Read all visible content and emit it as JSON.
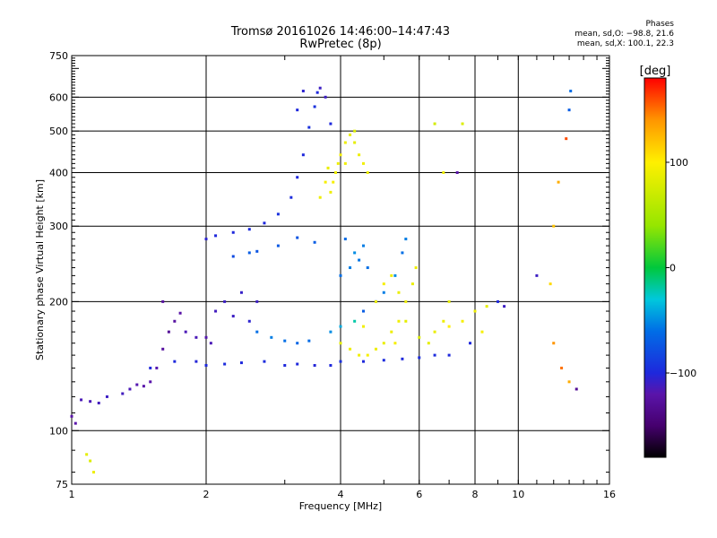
{
  "header": {
    "title": "Tromsø 20161026 14:46:00–14:47:43",
    "subtitle": "RwPretec (8p)",
    "stats_title": "Phases",
    "stats_o": "mean, sd,O: −98.8, 21.6",
    "stats_x": "mean, sd,X: 100.1, 22.3"
  },
  "chart_data": {
    "type": "scatter",
    "xlabel": "Frequency [MHz]",
    "ylabel": "Stationary phase Virtual Height [km]",
    "x_scale": "log",
    "y_scale": "log",
    "xlim": [
      1,
      16
    ],
    "ylim": [
      75,
      750
    ],
    "grid": true,
    "x_ticks": [
      1,
      2,
      4,
      6,
      8,
      10,
      16
    ],
    "x_tick_labels": [
      "1",
      "2",
      "4",
      "6",
      "8",
      "10",
      "16"
    ],
    "y_ticks": [
      75,
      100,
      200,
      300,
      400,
      500,
      600,
      750
    ],
    "y_tick_labels": [
      "75",
      "100",
      "200",
      "300",
      "400",
      "500",
      "600",
      "750"
    ],
    "colorbar": {
      "label": "[deg]",
      "range": [
        -180,
        180
      ],
      "ticks": [
        100,
        0,
        -100
      ],
      "tick_labels": [
        "100",
        "0",
        "−100"
      ]
    },
    "series": [
      {
        "points": [
          [
            1.0,
            108,
            -120
          ],
          [
            1.02,
            104,
            -120
          ],
          [
            1.05,
            118,
            -115
          ],
          [
            1.1,
            117,
            -115
          ],
          [
            1.15,
            116,
            -112
          ],
          [
            1.2,
            120,
            -110
          ],
          [
            1.3,
            122,
            -112
          ],
          [
            1.35,
            125,
            -115
          ],
          [
            1.4,
            128,
            -118
          ],
          [
            1.45,
            127,
            -120
          ],
          [
            1.5,
            130,
            -120
          ],
          [
            1.55,
            140,
            -118
          ],
          [
            1.6,
            155,
            -125
          ],
          [
            1.65,
            170,
            -130
          ],
          [
            1.7,
            180,
            -125
          ],
          [
            1.75,
            188,
            -122
          ],
          [
            1.6,
            200,
            -125
          ],
          [
            1.8,
            170,
            -115
          ],
          [
            1.9,
            165,
            -115
          ],
          [
            2.0,
            165,
            -118
          ],
          [
            2.05,
            160,
            -115
          ],
          [
            2.1,
            190,
            -112
          ],
          [
            2.2,
            200,
            -110
          ],
          [
            2.3,
            185,
            -110
          ],
          [
            2.4,
            210,
            -108
          ],
          [
            2.5,
            180,
            -105
          ],
          [
            2.6,
            200,
            -110
          ]
        ]
      },
      {
        "points": [
          [
            1.5,
            140,
            -100
          ],
          [
            1.7,
            145,
            -100
          ],
          [
            1.9,
            145,
            -102
          ],
          [
            2.0,
            142,
            -100
          ],
          [
            2.2,
            143,
            -98
          ],
          [
            2.4,
            144,
            -100
          ],
          [
            2.7,
            145,
            -98
          ],
          [
            3.0,
            142,
            -100
          ],
          [
            3.2,
            143,
            -100
          ],
          [
            3.5,
            142,
            -102
          ],
          [
            3.8,
            142,
            -100
          ],
          [
            4.0,
            145,
            -95
          ],
          [
            4.5,
            145,
            -100
          ],
          [
            5.0,
            146,
            -98
          ],
          [
            5.5,
            147,
            -100
          ],
          [
            6.0,
            148,
            -97
          ],
          [
            6.5,
            150,
            -98
          ],
          [
            7.0,
            150,
            -100
          ]
        ]
      },
      {
        "points": [
          [
            2.0,
            280,
            -105
          ],
          [
            2.1,
            285,
            -100
          ],
          [
            2.3,
            290,
            -100
          ],
          [
            2.5,
            295,
            -98
          ],
          [
            2.7,
            305,
            -100
          ],
          [
            2.9,
            320,
            -95
          ],
          [
            3.1,
            350,
            -98
          ],
          [
            3.2,
            390,
            -100
          ],
          [
            3.3,
            440,
            -100
          ],
          [
            3.4,
            510,
            -95
          ],
          [
            3.5,
            570,
            -95
          ],
          [
            3.55,
            615,
            -100
          ],
          [
            3.6,
            630,
            -110
          ],
          [
            3.7,
            600,
            -110
          ],
          [
            3.8,
            520,
            -100
          ],
          [
            3.3,
            620,
            -105
          ],
          [
            3.2,
            560,
            -100
          ]
        ]
      },
      {
        "points": [
          [
            2.3,
            255,
            -80
          ],
          [
            2.6,
            262,
            -75
          ],
          [
            2.9,
            270,
            -72
          ],
          [
            3.2,
            282,
            -75
          ],
          [
            3.5,
            275,
            -70
          ],
          [
            2.5,
            260,
            -70
          ]
        ]
      },
      {
        "points": [
          [
            2.6,
            170,
            -60
          ],
          [
            2.8,
            165,
            -55
          ],
          [
            3.0,
            162,
            -60
          ],
          [
            3.2,
            160,
            -65
          ],
          [
            3.4,
            162,
            -62
          ],
          [
            3.8,
            170,
            -50
          ],
          [
            4.0,
            175,
            -40
          ],
          [
            4.3,
            180,
            -20
          ],
          [
            4.5,
            190,
            -70
          ],
          [
            4.8,
            200,
            -60
          ],
          [
            5.0,
            210,
            -55
          ],
          [
            5.3,
            230,
            -50
          ],
          [
            5.5,
            260,
            -60
          ],
          [
            5.6,
            280,
            -55
          ]
        ]
      },
      {
        "points": [
          [
            3.8,
            360,
            90
          ],
          [
            3.85,
            380,
            95
          ],
          [
            3.9,
            400,
            92
          ],
          [
            3.95,
            420,
            90
          ],
          [
            4.0,
            440,
            95
          ],
          [
            4.1,
            470,
            90
          ],
          [
            4.2,
            490,
            88
          ],
          [
            4.3,
            470,
            85
          ],
          [
            4.4,
            440,
            90
          ],
          [
            4.5,
            420,
            92
          ],
          [
            4.6,
            400,
            90
          ],
          [
            3.7,
            380,
            95
          ],
          [
            3.6,
            350,
            90
          ],
          [
            3.75,
            410,
            88
          ],
          [
            4.1,
            420,
            92
          ],
          [
            4.3,
            500,
            80
          ]
        ]
      },
      {
        "points": [
          [
            4.0,
            160,
            85
          ],
          [
            4.2,
            155,
            90
          ],
          [
            4.4,
            150,
            92
          ],
          [
            4.6,
            150,
            95
          ],
          [
            4.8,
            155,
            90
          ],
          [
            5.0,
            160,
            88
          ],
          [
            5.2,
            170,
            90
          ],
          [
            5.4,
            180,
            92
          ],
          [
            5.6,
            200,
            90
          ],
          [
            5.8,
            220,
            88
          ],
          [
            5.9,
            240,
            90
          ],
          [
            4.8,
            200,
            92
          ],
          [
            5.0,
            220,
            95
          ],
          [
            5.2,
            230,
            90
          ],
          [
            5.4,
            210,
            88
          ],
          [
            5.6,
            180,
            85
          ],
          [
            6.0,
            165,
            80
          ],
          [
            6.3,
            160,
            85
          ],
          [
            6.5,
            170,
            88
          ],
          [
            6.8,
            180,
            90
          ],
          [
            7.0,
            200,
            85
          ],
          [
            5.3,
            160,
            95
          ],
          [
            4.5,
            175,
            92
          ]
        ]
      },
      {
        "points": [
          [
            4.0,
            230,
            -60
          ],
          [
            4.2,
            240,
            -55
          ],
          [
            4.4,
            250,
            -58
          ],
          [
            4.6,
            240,
            -60
          ],
          [
            4.3,
            260,
            -50
          ],
          [
            4.1,
            280,
            -62
          ],
          [
            4.5,
            270,
            -55
          ]
        ]
      },
      {
        "points": [
          [
            6.5,
            520,
            75
          ],
          [
            7.5,
            520,
            80
          ],
          [
            6.8,
            400,
            90
          ],
          [
            7.3,
            400,
            -120
          ],
          [
            11.0,
            230,
            -110
          ],
          [
            11.8,
            220,
            110
          ],
          [
            12.0,
            300,
            120
          ],
          [
            12.3,
            380,
            130
          ],
          [
            12.8,
            480,
            160
          ],
          [
            13.0,
            560,
            -70
          ],
          [
            13.1,
            620,
            -60
          ],
          [
            12.0,
            160,
            140
          ],
          [
            12.5,
            140,
            150
          ],
          [
            13.0,
            130,
            130
          ],
          [
            13.5,
            125,
            -130
          ]
        ]
      },
      {
        "points": [
          [
            7.0,
            175,
            100
          ],
          [
            7.5,
            180,
            95
          ],
          [
            8.0,
            190,
            90
          ],
          [
            8.5,
            195,
            85
          ],
          [
            9.0,
            200,
            -100
          ],
          [
            9.3,
            195,
            -110
          ],
          [
            8.3,
            170,
            95
          ],
          [
            7.8,
            160,
            -100
          ]
        ]
      },
      {
        "points": [
          [
            1.1,
            85,
            80
          ],
          [
            1.12,
            80,
            90
          ],
          [
            1.08,
            88,
            85
          ]
        ]
      }
    ]
  }
}
